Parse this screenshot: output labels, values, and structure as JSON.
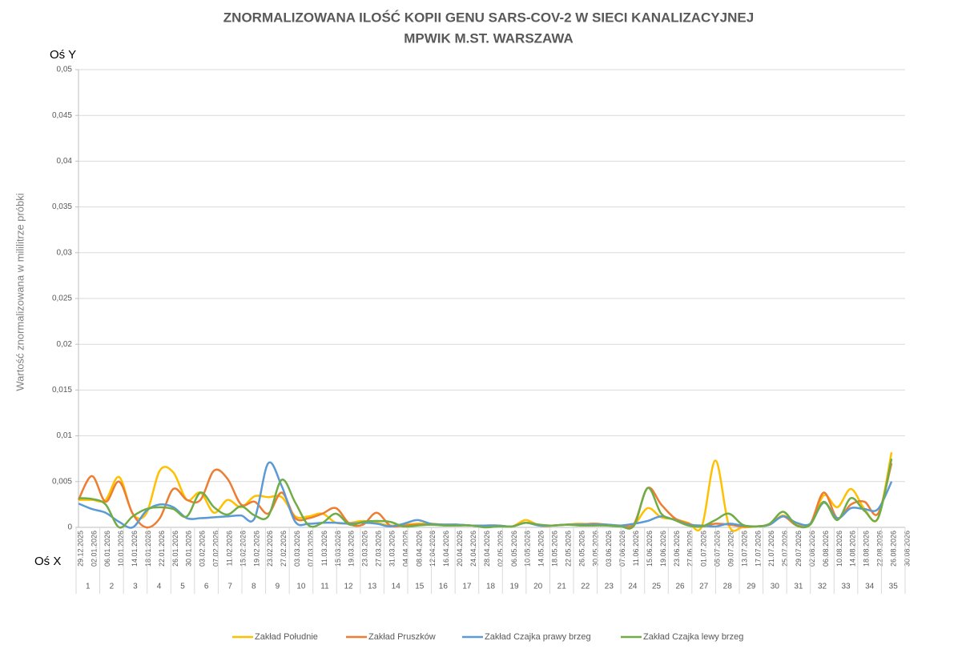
{
  "chart_data": {
    "type": "line",
    "title_lines": [
      "ZNORMALIZOWANA ILOŚĆ KOPII GENU SARS-COV-2 W SIECI KANALIZACYJNEJ",
      "MPWIK M.ST. WARSZAWA"
    ],
    "y_axis_caption": "Oś Y",
    "x_axis_caption": "Oś X",
    "ylabel": "Wartość znormalizowana w mililitrze próbki",
    "ylim": [
      0,
      0.05
    ],
    "yticks": [
      0,
      {
        "value": 0.005,
        "label": "0,005"
      },
      {
        "value": 0.01,
        "label": "0,01"
      },
      {
        "value": 0.015,
        "label": "0,015"
      },
      {
        "value": 0.02,
        "label": "0,02"
      },
      {
        "value": 0.025,
        "label": "0,025"
      },
      {
        "value": 0.03,
        "label": "0,03"
      },
      {
        "value": 0.035,
        "label": "0,035"
      },
      {
        "value": 0.04,
        "label": "0,04"
      },
      {
        "value": 0.045,
        "label": "0,045"
      },
      {
        "value": 0.05,
        "label": "0,05"
      }
    ],
    "grid": true,
    "categories": [
      "29.12.2025",
      "02.01.2026",
      "06.01.2026",
      "10.01.2026",
      "14.01.2026",
      "18.01.2026",
      "22.01.2026",
      "26.01.2026",
      "30.01.2026",
      "03.02.2026",
      "07.02.2026",
      "11.02.2026",
      "15.02.2026",
      "19.02.2026",
      "23.02.2026",
      "27.02.2026",
      "03.03.2026",
      "07.03.2026",
      "11.03.2026",
      "15.03.2026",
      "19.03.2026",
      "23.03.2026",
      "27.03.2026",
      "31.03.2026",
      "04.04.2026",
      "08.04.2026",
      "12.04.2026",
      "16.04.2026",
      "20.04.2026",
      "24.04.2026",
      "28.04.2026",
      "02.05.2026",
      "06.05.2026",
      "10.05.2026",
      "14.05.2026",
      "18.05.2026",
      "22.05.2026",
      "26.05.2026",
      "30.05.2026",
      "03.06.2026",
      "07.06.2026",
      "11.06.2026",
      "15.06.2026",
      "19.06.2026",
      "23.06.2026",
      "27.06.2026",
      "01.07.2026",
      "05.07.2026",
      "09.07.2026",
      "13.07.2026",
      "17.07.2026",
      "21.07.2026",
      "25.07.2026",
      "29.07.2026",
      "02.08.2026",
      "06.08.2026",
      "10.08.2026",
      "14.08.2026",
      "18.08.2026",
      "22.08.2026",
      "26.08.2026",
      "30.08.2026"
    ],
    "groups": [
      1,
      2,
      3,
      4,
      5,
      6,
      7,
      8,
      9,
      10,
      11,
      12,
      13,
      14,
      15,
      16,
      17,
      18,
      19,
      20,
      21,
      22,
      23,
      24,
      25,
      26,
      27,
      28,
      29,
      30,
      31,
      32,
      33,
      34,
      35
    ],
    "series": [
      {
        "name": "Zakład Południe",
        "color": "#FFC000",
        "values": [
          0.003,
          0.003,
          0.003,
          0.0055,
          0.0015,
          0.0015,
          0.0062,
          0.006,
          0.003,
          0.0038,
          0.0016,
          0.003,
          0.0022,
          0.0034,
          0.0033,
          0.0033,
          0.0012,
          0.0012,
          0.0015,
          0.0005,
          0.0005,
          0.0007,
          0.0005,
          0.0002,
          0.0003,
          0.0004,
          0.0004,
          0.0003,
          0.0003,
          0.0002,
          0.0002,
          0.0002,
          0.0001,
          0.0008,
          0.0002,
          0.0002,
          0.0003,
          0.0004,
          0.0003,
          0.0003,
          0.0002,
          0.0003,
          0.0021,
          0.0011,
          0.0009,
          0.0005,
          0.0001,
          0.0073,
          0.0002,
          0,
          0.0001,
          0.0003,
          0.0013,
          0.0003,
          0.0003,
          0.0035,
          0.0022,
          0.0042,
          0.002,
          0.001,
          0.0082,
          null
        ]
      },
      {
        "name": "Zakład Pruszków",
        "color": "#ED7D31",
        "values": [
          0.003,
          0.0056,
          0.0028,
          0.005,
          0.0015,
          0,
          0.001,
          0.0042,
          0.003,
          0.003,
          0.0062,
          0.0053,
          0.0025,
          0.0028,
          0.0015,
          0.0038,
          0.001,
          0.001,
          0.0015,
          0.0021,
          0.0004,
          0.0003,
          0.0016,
          0.0002,
          0.0002,
          0.0003,
          0.0003,
          0.0003,
          0.0003,
          0.0002,
          0.0002,
          0.0002,
          0.0001,
          0.0005,
          0.0002,
          0.0002,
          0.0003,
          0.0003,
          0.0004,
          0.0003,
          0.0002,
          0.0004,
          0.0043,
          0.0025,
          0.001,
          0.0004,
          0.0001,
          0.0004,
          0.0003,
          0.0001,
          0.0001,
          0.0003,
          0.0012,
          0.0002,
          0.0004,
          0.0038,
          0.001,
          0.0025,
          0.0028,
          0.0015,
          0.007,
          null
        ]
      },
      {
        "name": "Zakład Czajka prawy brzeg",
        "color": "#5B9BD5",
        "values": [
          0.0026,
          0.002,
          0.0016,
          0.0006,
          0,
          0.0018,
          0.0025,
          0.0022,
          0.001,
          0.001,
          0.0011,
          0.0012,
          0.0013,
          0.001,
          0.007,
          0.0045,
          0.0006,
          0.0004,
          0.0005,
          0.0005,
          0.0004,
          0.0005,
          0.0004,
          0.0001,
          0.0004,
          0.0008,
          0.0004,
          0.0003,
          0.0003,
          0.0002,
          0.0002,
          0.0002,
          0.0001,
          0.0005,
          0.0002,
          0.0002,
          0.0003,
          0.0003,
          0.0003,
          0.0003,
          0.0002,
          0.0004,
          0.0007,
          0.0012,
          0.0008,
          0.0003,
          0.0002,
          0.0001,
          0.0004,
          0.0002,
          0.0001,
          0.0003,
          0.0012,
          0.0005,
          0.0004,
          0.0027,
          0.001,
          0.0021,
          0.002,
          0.002,
          0.005,
          null
        ]
      },
      {
        "name": "Zakład Czajka lewy brzeg",
        "color": "#70AD47",
        "values": [
          0.0032,
          0.0031,
          0.0025,
          0,
          0.0012,
          0.002,
          0.0022,
          0.002,
          0.0012,
          0.0038,
          0.0022,
          0.0014,
          0.0023,
          0.0013,
          0.0012,
          0.0052,
          0.0027,
          0.0002,
          0.0005,
          0.0015,
          0.0003,
          0.0006,
          0.0007,
          0.0006,
          0.0001,
          0.0002,
          0.0003,
          0.0002,
          0.0002,
          0.0002,
          0,
          0.0001,
          0.0001,
          0.0005,
          0.0003,
          0.0002,
          0.0003,
          0.0002,
          0.0002,
          0.0002,
          0.0001,
          0.0002,
          0.0043,
          0.0015,
          0.0008,
          0.0002,
          0.0001,
          0.0008,
          0.0015,
          0.0003,
          0.0001,
          0.0004,
          0.0017,
          0.0002,
          0.0003,
          0.0028,
          0.0008,
          0.0032,
          0.0018,
          0.001,
          0.0075,
          null
        ]
      }
    ]
  }
}
